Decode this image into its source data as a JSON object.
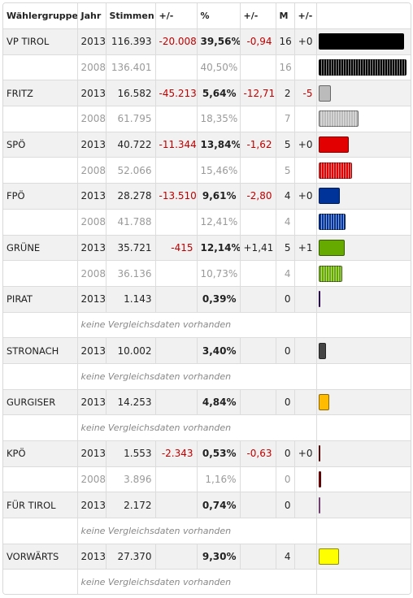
{
  "columns": [
    "Wählergruppe",
    "Jahr",
    "Stimmen",
    "+/-",
    "%",
    "+/-",
    "M",
    "+/-"
  ],
  "no_comparison_text": "keine Vergleichsdaten vorhanden",
  "parties": [
    {
      "name": "VP TIROL",
      "color": "#000000",
      "row_2013": {
        "year": "2013",
        "votes": "116.393",
        "votes_diff": "-20.008",
        "pct": "39,56%",
        "pct_value": 39.56,
        "pct_diff": "-0,94",
        "seats": "16",
        "seats_diff": "+0"
      },
      "row_2008": {
        "year": "2008",
        "votes": "136.401",
        "pct": "40,50%",
        "pct_value": 40.5,
        "seats": "16"
      }
    },
    {
      "name": "FRITZ",
      "color": "#bbbbbb",
      "row_2013": {
        "year": "2013",
        "votes": "16.582",
        "votes_diff": "-45.213",
        "pct": "5,64%",
        "pct_value": 5.64,
        "pct_diff": "-12,71",
        "seats": "2",
        "seats_diff": "-5"
      },
      "row_2008": {
        "year": "2008",
        "votes": "61.795",
        "pct": "18,35%",
        "pct_value": 18.35,
        "seats": "7"
      }
    },
    {
      "name": "SPÖ",
      "color": "#e30000",
      "row_2013": {
        "year": "2013",
        "votes": "40.722",
        "votes_diff": "-11.344",
        "pct": "13,84%",
        "pct_value": 13.84,
        "pct_diff": "-1,62",
        "seats": "5",
        "seats_diff": "+0"
      },
      "row_2008": {
        "year": "2008",
        "votes": "52.066",
        "pct": "15,46%",
        "pct_value": 15.46,
        "seats": "5"
      }
    },
    {
      "name": "FPÖ",
      "color": "#003399",
      "row_2013": {
        "year": "2013",
        "votes": "28.278",
        "votes_diff": "-13.510",
        "pct": "9,61%",
        "pct_value": 9.61,
        "pct_diff": "-2,80",
        "seats": "4",
        "seats_diff": "+0"
      },
      "row_2008": {
        "year": "2008",
        "votes": "41.788",
        "pct": "12,41%",
        "pct_value": 12.41,
        "seats": "4"
      }
    },
    {
      "name": "GRÜNE",
      "color": "#66aa00",
      "row_2013": {
        "year": "2013",
        "votes": "35.721",
        "votes_diff": "-415",
        "pct": "12,14%",
        "pct_value": 12.14,
        "pct_diff": "+1,41",
        "seats": "5",
        "seats_diff": "+1"
      },
      "row_2008": {
        "year": "2008",
        "votes": "36.136",
        "pct": "10,73%",
        "pct_value": 10.73,
        "seats": "4"
      }
    },
    {
      "name": "PIRAT",
      "color": "#4b0082",
      "row_2013": {
        "year": "2013",
        "votes": "1.143",
        "votes_diff": "",
        "pct": "0,39%",
        "pct_value": 0.39,
        "pct_diff": "",
        "seats": "0",
        "seats_diff": ""
      },
      "row_2008": null
    },
    {
      "name": "STRONACH",
      "color": "#444444",
      "row_2013": {
        "year": "2013",
        "votes": "10.002",
        "votes_diff": "",
        "pct": "3,40%",
        "pct_value": 3.4,
        "pct_diff": "",
        "seats": "0",
        "seats_diff": ""
      },
      "row_2008": null
    },
    {
      "name": "GURGISER",
      "color": "#ffbb00",
      "row_2013": {
        "year": "2013",
        "votes": "14.253",
        "votes_diff": "",
        "pct": "4,84%",
        "pct_value": 4.84,
        "pct_diff": "",
        "seats": "0",
        "seats_diff": ""
      },
      "row_2008": null
    },
    {
      "name": "KPÖ",
      "color": "#8b0000",
      "row_2013": {
        "year": "2013",
        "votes": "1.553",
        "votes_diff": "-2.343",
        "pct": "0,53%",
        "pct_value": 0.53,
        "pct_diff": "-0,63",
        "seats": "0",
        "seats_diff": "+0"
      },
      "row_2008": {
        "year": "2008",
        "votes": "3.896",
        "pct": "1,16%",
        "pct_value": 1.16,
        "seats": "0"
      }
    },
    {
      "name": "FÜR TIROL",
      "color": "#cc77cc",
      "row_2013": {
        "year": "2013",
        "votes": "2.172",
        "votes_diff": "",
        "pct": "0,74%",
        "pct_value": 0.74,
        "pct_diff": "",
        "seats": "0",
        "seats_diff": ""
      },
      "row_2008": null,
      "no_comparison": true
    },
    {
      "name": "VORWÄRTS",
      "color": "#ffff00",
      "row_2013": {
        "year": "2013",
        "votes": "27.370",
        "votes_diff": "",
        "pct": "9,30%",
        "pct_value": 9.3,
        "pct_diff": "",
        "seats": "4",
        "seats_diff": ""
      },
      "row_2008": null
    }
  ]
}
